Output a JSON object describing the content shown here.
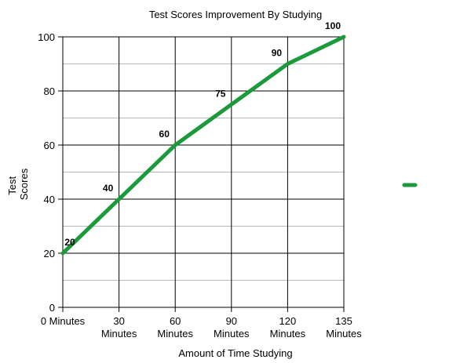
{
  "chart_data": {
    "type": "line",
    "title": "Test Scores Improvement By Studying",
    "xlabel": "Amount of Time Studying",
    "ylabel": "Test Scores",
    "categories": [
      "0 Minutes",
      "30 Minutes",
      "60 Minutes",
      "90 Minutes",
      "120 Minutes",
      "135 Minutes"
    ],
    "series": [
      {
        "values": [
          20,
          40,
          60,
          75,
          90,
          100
        ],
        "color": "#1a9a3a"
      }
    ],
    "ylim": [
      0,
      100
    ],
    "yticks": [
      0,
      20,
      40,
      60,
      80,
      100
    ],
    "minor_gridlines": [
      10,
      30,
      50,
      70,
      90
    ],
    "grid": true,
    "legend_placement": "right",
    "data_labels": [
      "20",
      "40",
      "60",
      "75",
      "90",
      "100"
    ]
  }
}
